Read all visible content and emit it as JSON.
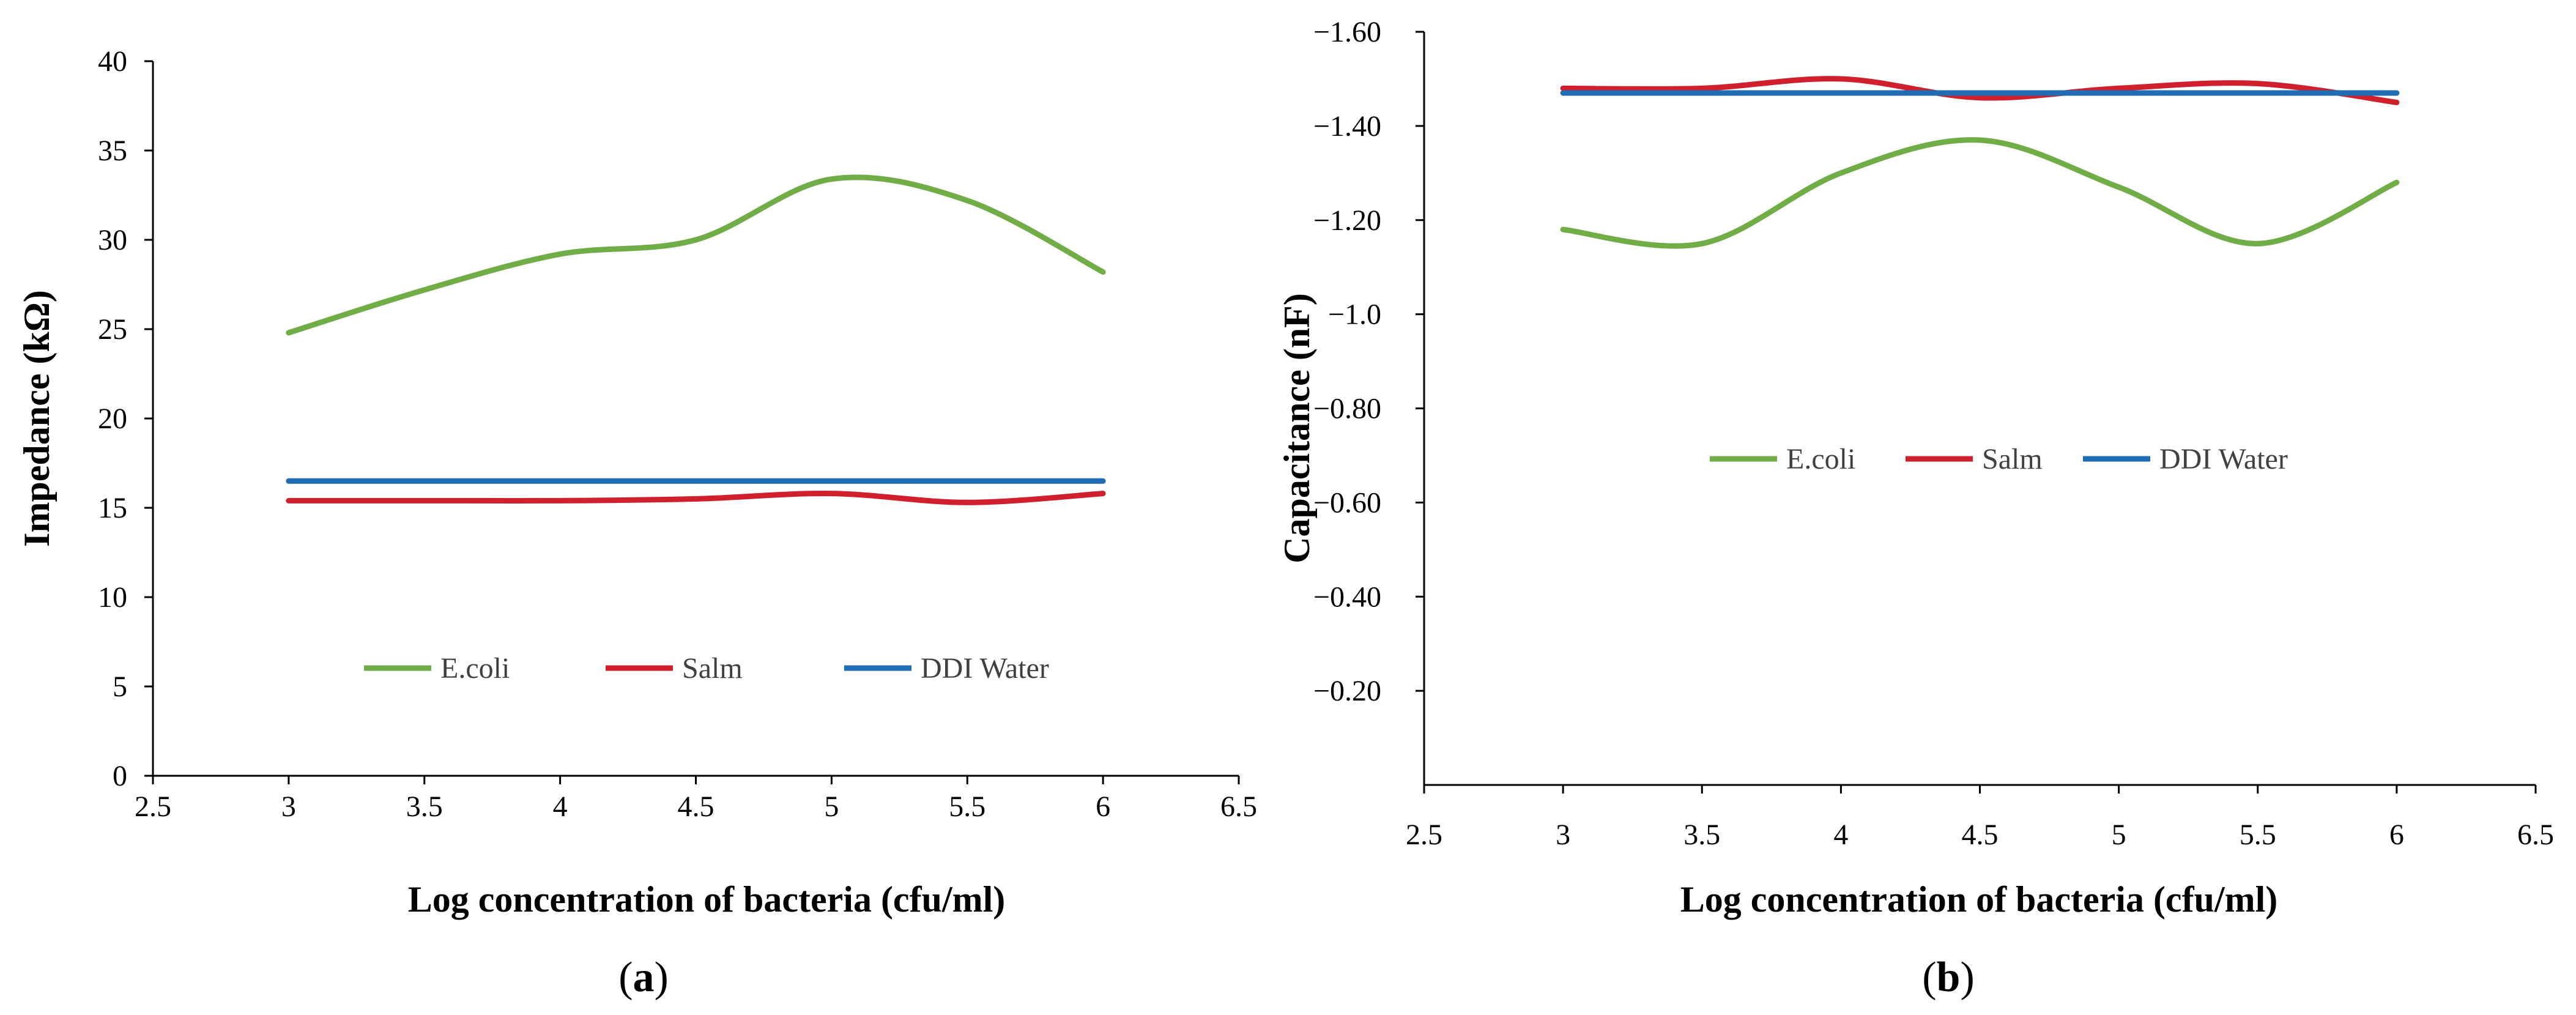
{
  "chart_data": [
    {
      "type": "line",
      "panel": "a",
      "caption_letter": "a",
      "xlabel": "Log concentration of bacteria (cfu/ml)",
      "ylabel": "Impedance (kΩ)",
      "xlim": [
        2.5,
        6.5
      ],
      "ylim": [
        0,
        40
      ],
      "xticks": [
        "2.5",
        "3",
        "3.5",
        "4",
        "4.5",
        "5",
        "5.5",
        "6",
        "6.5"
      ],
      "yticks": [
        "0",
        "5",
        "10",
        "15",
        "20",
        "25",
        "30",
        "35",
        "40"
      ],
      "legend_position": "lower-center",
      "x": [
        3,
        3.5,
        4,
        4.5,
        5,
        5.5,
        6
      ],
      "series": [
        {
          "name": "E.coli",
          "color": "#70ad47",
          "values": [
            24.8,
            27.2,
            29.2,
            30.0,
            33.4,
            32.2,
            28.2
          ]
        },
        {
          "name": "Salm",
          "color": "#d0202e",
          "values": [
            15.4,
            15.4,
            15.4,
            15.5,
            15.8,
            15.3,
            15.8
          ]
        },
        {
          "name": "DDI Water",
          "color": "#1f6db4",
          "values": [
            16.5,
            16.5,
            16.5,
            16.5,
            16.5,
            16.5,
            16.5
          ]
        }
      ]
    },
    {
      "type": "line",
      "panel": "b",
      "caption_letter": "b",
      "xlabel": "Log concentration of bacteria (cfu/ml)",
      "ylabel": "Capacitance (nF)",
      "xlim": [
        2.5,
        6.5
      ],
      "ylim": [
        0,
        -1.6
      ],
      "y_reversed": true,
      "xticks": [
        "2.5",
        "3",
        "3.5",
        "4",
        "4.5",
        "5",
        "5.5",
        "6",
        "6.5"
      ],
      "yticks": [
        "-0.20",
        "-0.40",
        "-0.60",
        "-0.80",
        "-1.0",
        "-1.20",
        "-1.40",
        "-1.60"
      ],
      "legend_position": "center",
      "x": [
        3,
        3.5,
        4,
        4.5,
        5,
        5.5,
        6
      ],
      "series": [
        {
          "name": "E.coli",
          "color": "#70ad47",
          "values": [
            -1.18,
            -1.15,
            -1.3,
            -1.37,
            -1.27,
            -1.15,
            -1.28
          ]
        },
        {
          "name": "Salm",
          "color": "#d0202e",
          "values": [
            -1.48,
            -1.48,
            -1.5,
            -1.46,
            -1.48,
            -1.49,
            -1.45
          ]
        },
        {
          "name": "DDI Water",
          "color": "#1f6db4",
          "values": [
            -1.47,
            -1.47,
            -1.47,
            -1.47,
            -1.47,
            -1.47,
            -1.47
          ]
        }
      ]
    }
  ]
}
